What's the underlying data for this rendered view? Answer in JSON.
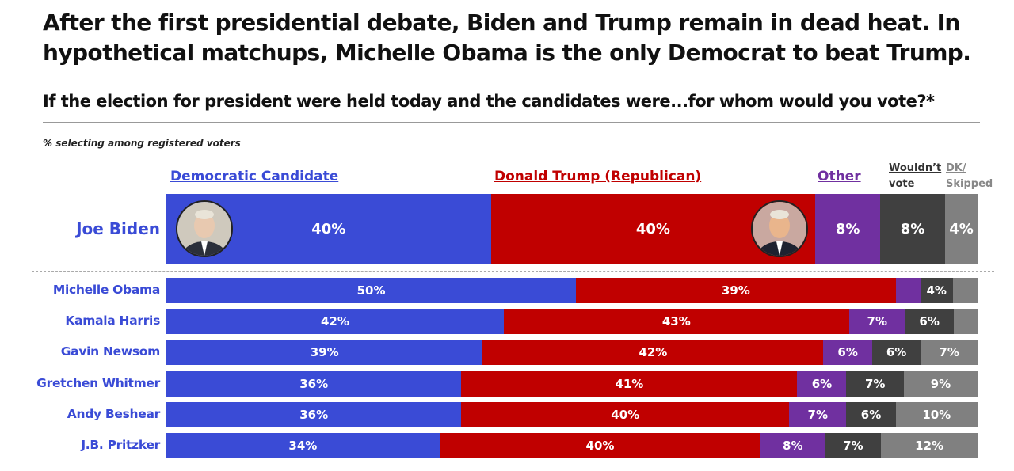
{
  "header": {
    "title": "After the first presidential debate, Biden and Trump remain in dead heat. In hypothetical matchups, Michelle Obama is the only Democrat to beat Trump.",
    "subtitle": "If the election for president were held today and the candidates were...for whom would you vote?*",
    "note": "% selecting among registered voters"
  },
  "legend": {
    "dem": "Democratic Candidate",
    "rep": "Donald Trump (Republican)",
    "other": "Other",
    "wv": "Wouldn’t vote",
    "dk": "DK/ Skipped"
  },
  "colors": {
    "dem": "#3a4bd6",
    "rep": "#c00000",
    "other": "#7030a0",
    "wv": "#404040",
    "dk": "#808080"
  },
  "icons": {
    "biden": "joe-biden-portrait-icon",
    "trump": "donald-trump-portrait-icon"
  },
  "chart_data": {
    "type": "bar",
    "orientation": "horizontal",
    "stacked": true,
    "categories": [
      "Joe Biden",
      "Michelle Obama",
      "Kamala Harris",
      "Gavin Newsom",
      "Gretchen Whitmer",
      "Andy Beshear",
      "J.B. Pritzker"
    ],
    "series": [
      {
        "name": "Democratic Candidate",
        "values": [
          40,
          50,
          42,
          39,
          36,
          36,
          34
        ],
        "labels": [
          "40%",
          "50%",
          "42%",
          "39%",
          "36%",
          "36%",
          "34%"
        ]
      },
      {
        "name": "Donald Trump (Republican)",
        "values": [
          40,
          39,
          43,
          42,
          41,
          40,
          40
        ],
        "labels": [
          "40%",
          "39%",
          "43%",
          "42%",
          "41%",
          "40%",
          "40%"
        ]
      },
      {
        "name": "Other",
        "values": [
          8,
          3,
          7,
          6,
          6,
          7,
          8
        ],
        "labels": [
          "8%",
          "",
          "7%",
          "6%",
          "6%",
          "7%",
          "8%"
        ]
      },
      {
        "name": "Wouldn’t vote",
        "values": [
          8,
          4,
          6,
          6,
          7,
          6,
          7
        ],
        "labels": [
          "8%",
          "4%",
          "6%",
          "6%",
          "7%",
          "6%",
          "7%"
        ]
      },
      {
        "name": "DK/ Skipped",
        "values": [
          4,
          3,
          3,
          7,
          9,
          10,
          12
        ],
        "labels": [
          "4%",
          "",
          "",
          "7%",
          "9%",
          "10%",
          "12%"
        ]
      }
    ],
    "xlim": [
      0,
      100
    ],
    "legend_position": "top"
  }
}
